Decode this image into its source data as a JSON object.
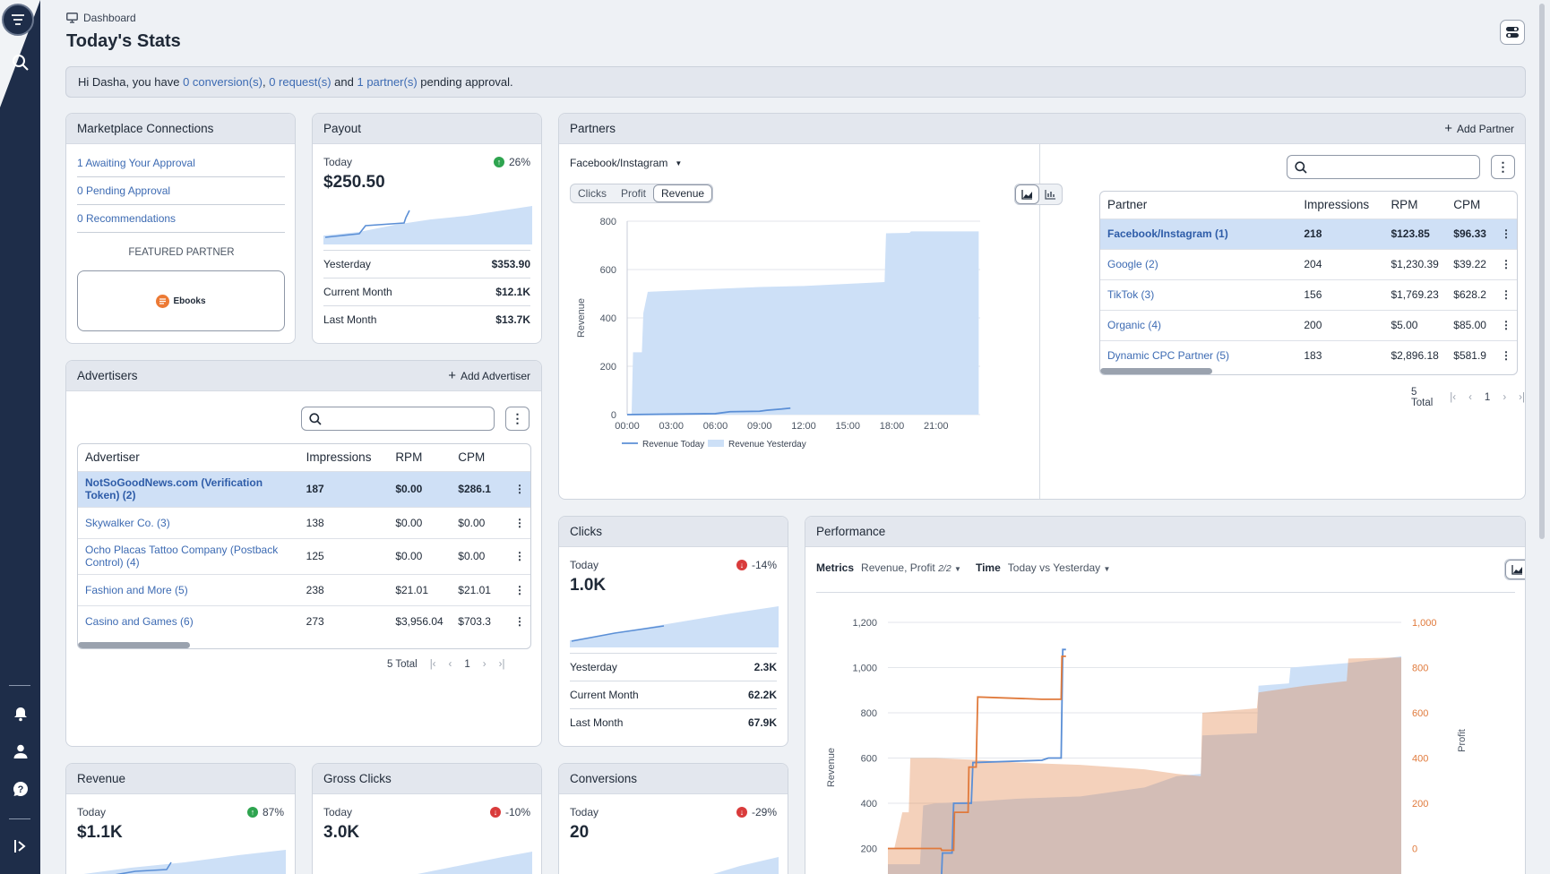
{
  "breadcrumb": {
    "label": "Dashboard"
  },
  "page": {
    "title": "Today's Stats"
  },
  "alert": {
    "greeting": "Hi Dasha, you have ",
    "conversions": "0 conversion(s)",
    "sep1": ", ",
    "requests": "0 request(s)",
    "sep2": " and ",
    "partners": "1 partner(s)",
    "tail": " pending approval."
  },
  "marketplace": {
    "title": "Marketplace Connections",
    "links": [
      "1 Awaiting Your Approval",
      "0 Pending Approval",
      "0 Recommendations"
    ],
    "featured_label": "FEATURED PARTNER",
    "featured_name": "Ebooks"
  },
  "payout": {
    "title": "Payout",
    "today_label": "Today",
    "today_value": "$250.50",
    "pct": "26%",
    "trend": "up",
    "rows": [
      {
        "label": "Yesterday",
        "value": "$353.90"
      },
      {
        "label": "Current Month",
        "value": "$12.1K"
      },
      {
        "label": "Last Month",
        "value": "$13.7K"
      }
    ]
  },
  "advertisers": {
    "title": "Advertisers",
    "add_label": "Add Advertiser",
    "columns": [
      "Advertiser",
      "Impressions",
      "RPM",
      "CPM"
    ],
    "rows": [
      {
        "name": "NotSoGoodNews.com (Verification Token) (2)",
        "impressions": "187",
        "rpm": "$0.00",
        "cpm": "$286.1",
        "selected": true
      },
      {
        "name": "Skywalker Co. (3)",
        "impressions": "138",
        "rpm": "$0.00",
        "cpm": "$0.00"
      },
      {
        "name": "Ocho Placas Tattoo Company (Postback Control) (4)",
        "impressions": "125",
        "rpm": "$0.00",
        "cpm": "$0.00"
      },
      {
        "name": "Fashion and More (5)",
        "impressions": "238",
        "rpm": "$21.01",
        "cpm": "$21.01"
      },
      {
        "name": "Casino and Games (6)",
        "impressions": "273",
        "rpm": "$3,956.04",
        "cpm": "$703.3"
      }
    ],
    "total": "5 Total",
    "page": "1"
  },
  "partners": {
    "title": "Partners",
    "add_label": "Add Partner",
    "source": "Facebook/Instagram",
    "segments": [
      "Clicks",
      "Profit",
      "Revenue"
    ],
    "active_segment": "Revenue",
    "columns": [
      "Partner",
      "Impressions",
      "RPM",
      "CPM"
    ],
    "rows": [
      {
        "name": "Facebook/Instagram (1)",
        "impressions": "218",
        "rpm": "$123.85",
        "cpm": "$96.33",
        "selected": true
      },
      {
        "name": "Google (2)",
        "impressions": "204",
        "rpm": "$1,230.39",
        "cpm": "$39.22"
      },
      {
        "name": "TikTok (3)",
        "impressions": "156",
        "rpm": "$1,769.23",
        "cpm": "$628.2"
      },
      {
        "name": "Organic (4)",
        "impressions": "200",
        "rpm": "$5.00",
        "cpm": "$85.00"
      },
      {
        "name": "Dynamic CPC Partner (5)",
        "impressions": "183",
        "rpm": "$2,896.18",
        "cpm": "$581.9"
      }
    ],
    "total": "5 Total",
    "page": "1"
  },
  "clicks": {
    "title": "Clicks",
    "today_label": "Today",
    "today_value": "1.0K",
    "pct": "-14%",
    "trend": "down",
    "rows": [
      {
        "label": "Yesterday",
        "value": "2.3K"
      },
      {
        "label": "Current Month",
        "value": "62.2K"
      },
      {
        "label": "Last Month",
        "value": "67.9K"
      }
    ]
  },
  "performance": {
    "title": "Performance",
    "metrics_label": "Metrics",
    "metrics_value": "Revenue, Profit",
    "metrics_count": "2/2",
    "time_label": "Time",
    "time_value": "Today vs Yesterday"
  },
  "revenue_card": {
    "title": "Revenue",
    "today_label": "Today",
    "today_value": "$1.1K",
    "pct": "87%",
    "trend": "up"
  },
  "gross_clicks": {
    "title": "Gross Clicks",
    "today_label": "Today",
    "today_value": "3.0K",
    "pct": "-10%",
    "trend": "down"
  },
  "conversions": {
    "title": "Conversions",
    "today_label": "Today",
    "today_value": "20",
    "pct": "-29%",
    "trend": "down"
  },
  "colors": {
    "accent": "#3d6bb3",
    "sidebar": "#1e2d49",
    "yesterday_fill": "#cde0f7",
    "today_line": "#5b8fd6",
    "profit": "#e07a3c"
  },
  "chart_data": [
    {
      "type": "area",
      "id": "partners-revenue",
      "ylabel": "Revenue",
      "ylim": [
        0,
        800
      ],
      "yticks": [
        0,
        200,
        400,
        600,
        800
      ],
      "xticks": [
        "00:00",
        "03:00",
        "06:00",
        "09:00",
        "12:00",
        "15:00",
        "18:00",
        "21:00"
      ],
      "legend": [
        "Revenue Today",
        "Revenue Yesterday"
      ],
      "series": [
        {
          "name": "Revenue Yesterday",
          "points": [
            [
              0.0,
              0
            ],
            [
              0.3,
              0
            ],
            [
              0.4,
              258
            ],
            [
              1.0,
              258
            ],
            [
              1.1,
              420
            ],
            [
              1.4,
              508
            ],
            [
              3,
              512
            ],
            [
              6,
              520
            ],
            [
              9,
              528
            ],
            [
              12,
              532
            ],
            [
              14,
              538
            ],
            [
              17.5,
              548
            ],
            [
              17.6,
              750
            ],
            [
              19.2,
              752
            ],
            [
              19.3,
              758
            ],
            [
              23.9,
              758
            ]
          ]
        },
        {
          "name": "Revenue Today",
          "points": [
            [
              0,
              0
            ],
            [
              3,
              2
            ],
            [
              6,
              4
            ],
            [
              7,
              12
            ],
            [
              9,
              14
            ],
            [
              9.5,
              18
            ],
            [
              10.5,
              23
            ],
            [
              11.1,
              27
            ]
          ]
        }
      ]
    },
    {
      "type": "area",
      "id": "performance",
      "ylabel": "Revenue",
      "y2label": "Profit",
      "ylim": [
        0,
        1200
      ],
      "yticks": [
        200,
        400,
        600,
        800,
        1000,
        1200
      ],
      "y2ticks": [
        0,
        200,
        400,
        600,
        800,
        1000
      ],
      "series": [
        {
          "name": "Revenue Yesterday",
          "points": [
            [
              0,
              130
            ],
            [
              2,
              130
            ],
            [
              2.2,
              390
            ],
            [
              3,
              400
            ],
            [
              6,
              410
            ],
            [
              8,
              420
            ],
            [
              12,
              430
            ],
            [
              16,
              470
            ],
            [
              18,
              520
            ],
            [
              19.5,
              530
            ],
            [
              19.6,
              700
            ],
            [
              23,
              710
            ],
            [
              23.1,
              920
            ],
            [
              25,
              930
            ],
            [
              25.1,
              1000
            ],
            [
              28.6,
              1020
            ],
            [
              31,
              1040
            ],
            [
              32,
              1050
            ]
          ]
        },
        {
          "name": "Profit Yesterday",
          "points": [
            [
              0,
              0
            ],
            [
              0.4,
              0
            ],
            [
              0.9,
              160
            ],
            [
              1.3,
              160
            ],
            [
              1.4,
              400
            ],
            [
              3,
              400
            ],
            [
              6,
              390
            ],
            [
              8,
              380
            ],
            [
              12,
              370
            ],
            [
              16,
              350
            ],
            [
              18,
              330
            ],
            [
              19.5,
              320
            ],
            [
              19.6,
              600
            ],
            [
              23,
              620
            ],
            [
              23.1,
              690
            ],
            [
              26,
              720
            ],
            [
              28.6,
              740
            ],
            [
              28.7,
              840
            ],
            [
              32,
              845
            ]
          ]
        },
        {
          "name": "Revenue Today",
          "points": [
            [
              3.3,
              0
            ],
            [
              3.4,
              180
            ],
            [
              4.0,
              180
            ],
            [
              4.1,
              400
            ],
            [
              5.2,
              400
            ],
            [
              5.3,
              580
            ],
            [
              9.6,
              590
            ],
            [
              10.0,
              600
            ],
            [
              10.8,
              600
            ],
            [
              10.9,
              1080
            ],
            [
              11.1,
              1080
            ]
          ]
        },
        {
          "name": "Profit Today",
          "points": [
            [
              0,
              0
            ],
            [
              3.3,
              0
            ],
            [
              3.35,
              -8
            ],
            [
              4.1,
              -8
            ],
            [
              4.15,
              160
            ],
            [
              5.0,
              160
            ],
            [
              5.05,
              360
            ],
            [
              5.5,
              360
            ],
            [
              5.6,
              670
            ],
            [
              9.6,
              660
            ],
            [
              10.0,
              660
            ],
            [
              10.8,
              660
            ],
            [
              10.85,
              850
            ],
            [
              11.1,
              850
            ]
          ]
        }
      ]
    }
  ]
}
